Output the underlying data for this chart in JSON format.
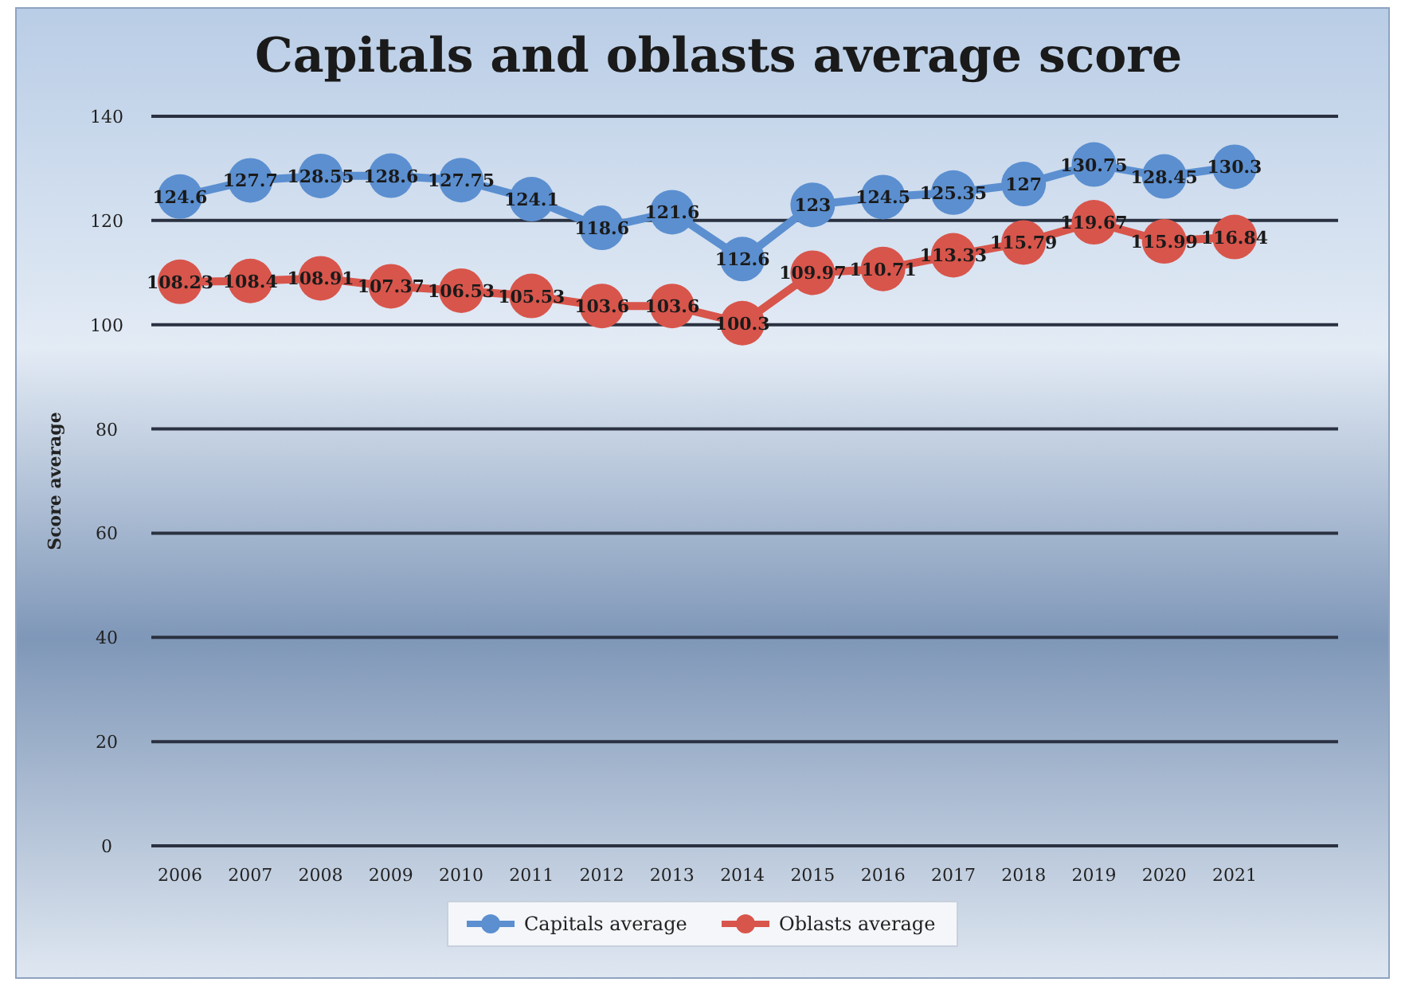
{
  "chart_data": {
    "type": "line",
    "title": "Capitals and oblasts average score",
    "ylabel": "Score average",
    "categories": [
      "2006",
      "2007",
      "2008",
      "2009",
      "2010",
      "2011",
      "2012",
      "2013",
      "2014",
      "2015",
      "2016",
      "2017",
      "2018",
      "2019",
      "2020",
      "2021"
    ],
    "series": [
      {
        "name": "Capitals average",
        "color": "#5b8fd0",
        "values": [
          124.6,
          127.7,
          128.55,
          128.6,
          127.75,
          124.1,
          118.6,
          121.6,
          112.6,
          123,
          124.5,
          125.35,
          127,
          130.75,
          128.45,
          130.3
        ]
      },
      {
        "name": "Oblasts average",
        "color": "#d8554b",
        "values": [
          108.23,
          108.4,
          108.91,
          107.37,
          106.53,
          105.53,
          103.6,
          103.6,
          100.3,
          109.97,
          110.71,
          113.33,
          115.79,
          119.67,
          115.99,
          116.84
        ]
      }
    ],
    "ylim": [
      0,
      140
    ],
    "yticks": [
      0,
      20,
      40,
      60,
      80,
      100,
      120,
      140
    ],
    "grid": "y",
    "legend": "bottom",
    "marker": "circle",
    "line_style": "solid",
    "data_labels": true
  }
}
